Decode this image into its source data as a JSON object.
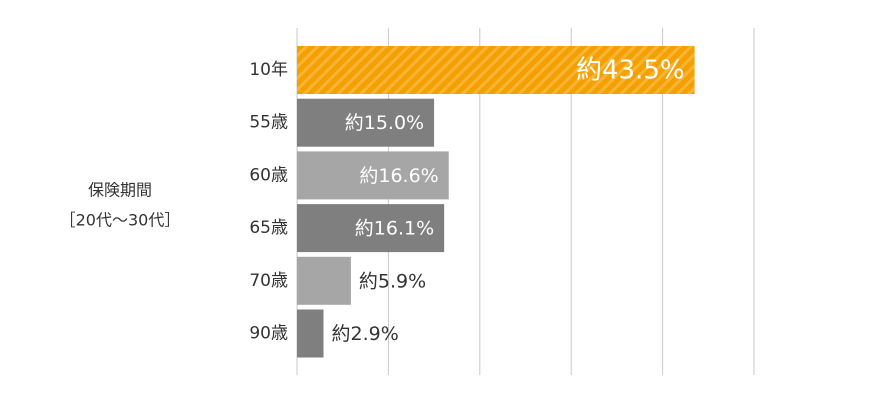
{
  "chart_data": {
    "type": "bar",
    "orientation": "horizontal",
    "axis_label": [
      "保険期間",
      "［20代～30代］"
    ],
    "categories": [
      "10年",
      "55歳",
      "60歳",
      "65歳",
      "70歳",
      "90歳"
    ],
    "values": [
      43.5,
      15.0,
      16.6,
      16.1,
      5.9,
      2.9
    ],
    "value_labels": [
      "約43.5%",
      "約15.0%",
      "約16.6%",
      "約16.1%",
      "約5.9%",
      "約2.9%"
    ],
    "colors": [
      "#f5a000",
      "#7f7f7f",
      "#a6a6a6",
      "#7f7f7f",
      "#a6a6a6",
      "#7f7f7f"
    ],
    "hatched": [
      true,
      false,
      false,
      false,
      false,
      false
    ],
    "xlim": [
      0,
      50
    ],
    "xticks": [
      0,
      10,
      20,
      30,
      40,
      50
    ],
    "grid": true
  }
}
